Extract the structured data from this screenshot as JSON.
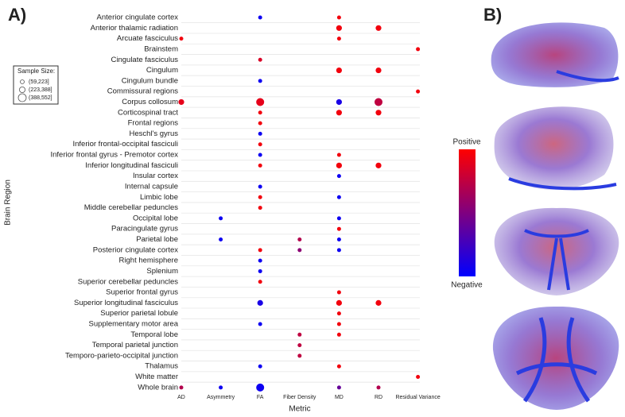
{
  "panel_a_label": "A)",
  "panel_b_label": "B)",
  "chart_data": {
    "type": "dot_matrix",
    "x_label": "Metric",
    "y_label": "Brain Region",
    "categories_x": [
      "AD",
      "Asymmetry",
      "FA",
      "Fiber Density",
      "MD",
      "RD",
      "Residual Variance"
    ],
    "categories_y": [
      "Anterior cingulate cortex",
      "Anterior thalamic radiation",
      "Arcuate fasciculus",
      "Brainstem",
      "Cingulate fasciculus",
      "Cingulum",
      "Cingulum bundle",
      "Commissural regions",
      "Corpus collosum",
      "Corticospinal tract",
      "Frontal regions",
      "Heschl's gyrus",
      "Inferior frontal-occipital fasciculi",
      "Inferior frontal gyrus - Premotor cortex",
      "Inferior longitudinal fasciculi",
      "Insular cortex",
      "Internal capsule",
      "Limbic lobe",
      "Middle cerebellar peduncles",
      "Occipital lobe",
      "Paracingulate gyrus",
      "Parietal lobe",
      "Posterior cingulate cortex",
      "Right hemisphere",
      "Splenium",
      "Superior cerebellar peduncles",
      "Superior frontal gyrus",
      "Superior longitudinal fasciculus",
      "Superior parietal lobule",
      "Supplementary motor area",
      "Temporal lobe",
      "Temporal parietal junction",
      "Temporo-parieto-occipital junction",
      "Thalamus",
      "White matter",
      "Whole brain"
    ],
    "size_legend": {
      "title": "Sample Size:",
      "labels": [
        "(59,223]",
        "(223,388]",
        "(388,552]"
      ]
    },
    "color_legend": {
      "high_label": "Positive",
      "low_label": "Negative",
      "high_color": "#ff0000",
      "low_color": "#0000ff",
      "clim": [
        -1,
        1
      ]
    },
    "grid": true,
    "points": [
      {
        "x": "FA",
        "y": "Anterior cingulate cortex",
        "effect": -0.9,
        "size": "(59,223]"
      },
      {
        "x": "MD",
        "y": "Anterior cingulate cortex",
        "effect": 0.9,
        "size": "(59,223]"
      },
      {
        "x": "MD",
        "y": "Anterior thalamic radiation",
        "effect": 0.9,
        "size": "(223,388]"
      },
      {
        "x": "RD",
        "y": "Anterior thalamic radiation",
        "effect": 0.9,
        "size": "(223,388]"
      },
      {
        "x": "AD",
        "y": "Arcuate fasciculus",
        "effect": 0.9,
        "size": "(59,223]"
      },
      {
        "x": "MD",
        "y": "Arcuate fasciculus",
        "effect": 0.9,
        "size": "(59,223]"
      },
      {
        "x": "Residual Variance",
        "y": "Brainstem",
        "effect": 0.9,
        "size": "(59,223]"
      },
      {
        "x": "FA",
        "y": "Cingulate fasciculus",
        "effect": 0.7,
        "size": "(59,223]"
      },
      {
        "x": "MD",
        "y": "Cingulum",
        "effect": 0.9,
        "size": "(223,388]"
      },
      {
        "x": "RD",
        "y": "Cingulum",
        "effect": 0.9,
        "size": "(223,388]"
      },
      {
        "x": "FA",
        "y": "Cingulum bundle",
        "effect": -0.9,
        "size": "(59,223]"
      },
      {
        "x": "Residual Variance",
        "y": "Commissural regions",
        "effect": 0.9,
        "size": "(59,223]"
      },
      {
        "x": "AD",
        "y": "Corpus collosum",
        "effect": 0.8,
        "size": "(223,388]"
      },
      {
        "x": "FA",
        "y": "Corpus collosum",
        "effect": 0.8,
        "size": "(388,552]"
      },
      {
        "x": "MD",
        "y": "Corpus collosum",
        "effect": -0.8,
        "size": "(223,388]"
      },
      {
        "x": "RD",
        "y": "Corpus collosum",
        "effect": 0.5,
        "size": "(388,552]"
      },
      {
        "x": "FA",
        "y": "Corticospinal tract",
        "effect": 0.9,
        "size": "(59,223]"
      },
      {
        "x": "MD",
        "y": "Corticospinal tract",
        "effect": 0.9,
        "size": "(223,388]"
      },
      {
        "x": "RD",
        "y": "Corticospinal tract",
        "effect": 0.9,
        "size": "(223,388]"
      },
      {
        "x": "FA",
        "y": "Frontal regions",
        "effect": 0.9,
        "size": "(59,223]"
      },
      {
        "x": "FA",
        "y": "Heschl's gyrus",
        "effect": -0.9,
        "size": "(59,223]"
      },
      {
        "x": "FA",
        "y": "Inferior frontal-occipital fasciculi",
        "effect": 0.9,
        "size": "(59,223]"
      },
      {
        "x": "FA",
        "y": "Inferior frontal gyrus - Premotor cortex",
        "effect": -0.9,
        "size": "(59,223]"
      },
      {
        "x": "MD",
        "y": "Inferior frontal gyrus - Premotor cortex",
        "effect": 0.9,
        "size": "(59,223]"
      },
      {
        "x": "FA",
        "y": "Inferior longitudinal fasciculi",
        "effect": 0.9,
        "size": "(59,223]"
      },
      {
        "x": "MD",
        "y": "Inferior longitudinal fasciculi",
        "effect": 0.9,
        "size": "(223,388]"
      },
      {
        "x": "RD",
        "y": "Inferior longitudinal fasciculi",
        "effect": 0.9,
        "size": "(223,388]"
      },
      {
        "x": "MD",
        "y": "Insular cortex",
        "effect": -0.9,
        "size": "(59,223]"
      },
      {
        "x": "FA",
        "y": "Internal capsule",
        "effect": -0.9,
        "size": "(59,223]"
      },
      {
        "x": "FA",
        "y": "Limbic lobe",
        "effect": 0.9,
        "size": "(59,223]"
      },
      {
        "x": "MD",
        "y": "Limbic lobe",
        "effect": -0.9,
        "size": "(59,223]"
      },
      {
        "x": "FA",
        "y": "Middle cerebellar peduncles",
        "effect": 0.9,
        "size": "(59,223]"
      },
      {
        "x": "Asymmetry",
        "y": "Occipital lobe",
        "effect": -0.9,
        "size": "(59,223]"
      },
      {
        "x": "MD",
        "y": "Occipital lobe",
        "effect": -0.9,
        "size": "(59,223]"
      },
      {
        "x": "MD",
        "y": "Paracingulate gyrus",
        "effect": 0.9,
        "size": "(59,223]"
      },
      {
        "x": "Asymmetry",
        "y": "Parietal lobe",
        "effect": -0.9,
        "size": "(59,223]"
      },
      {
        "x": "Fiber Density",
        "y": "Parietal lobe",
        "effect": 0.4,
        "size": "(59,223]"
      },
      {
        "x": "MD",
        "y": "Parietal lobe",
        "effect": -0.9,
        "size": "(59,223]"
      },
      {
        "x": "FA",
        "y": "Posterior cingulate cortex",
        "effect": 0.9,
        "size": "(59,223]"
      },
      {
        "x": "Fiber Density",
        "y": "Posterior cingulate cortex",
        "effect": 0.1,
        "size": "(59,223]"
      },
      {
        "x": "MD",
        "y": "Posterior cingulate cortex",
        "effect": -0.9,
        "size": "(59,223]"
      },
      {
        "x": "FA",
        "y": "Right hemisphere",
        "effect": -0.9,
        "size": "(59,223]"
      },
      {
        "x": "FA",
        "y": "Splenium",
        "effect": -0.9,
        "size": "(59,223]"
      },
      {
        "x": "FA",
        "y": "Superior cerebellar peduncles",
        "effect": 0.9,
        "size": "(59,223]"
      },
      {
        "x": "MD",
        "y": "Superior frontal gyrus",
        "effect": 0.9,
        "size": "(59,223]"
      },
      {
        "x": "FA",
        "y": "Superior longitudinal fasciculus",
        "effect": -0.8,
        "size": "(223,388]"
      },
      {
        "x": "MD",
        "y": "Superior longitudinal fasciculus",
        "effect": 0.9,
        "size": "(223,388]"
      },
      {
        "x": "RD",
        "y": "Superior longitudinal fasciculus",
        "effect": 0.9,
        "size": "(223,388]"
      },
      {
        "x": "MD",
        "y": "Superior parietal lobule",
        "effect": 0.9,
        "size": "(59,223]"
      },
      {
        "x": "FA",
        "y": "Supplementary motor area",
        "effect": -0.9,
        "size": "(59,223]"
      },
      {
        "x": "MD",
        "y": "Supplementary motor area",
        "effect": 0.9,
        "size": "(59,223]"
      },
      {
        "x": "Fiber Density",
        "y": "Temporal lobe",
        "effect": 0.5,
        "size": "(59,223]"
      },
      {
        "x": "MD",
        "y": "Temporal lobe",
        "effect": 0.9,
        "size": "(59,223]"
      },
      {
        "x": "Fiber Density",
        "y": "Temporal parietal junction",
        "effect": 0.5,
        "size": "(59,223]"
      },
      {
        "x": "Fiber Density",
        "y": "Temporo-parieto-occipital junction",
        "effect": 0.5,
        "size": "(59,223]"
      },
      {
        "x": "FA",
        "y": "Thalamus",
        "effect": -0.9,
        "size": "(59,223]"
      },
      {
        "x": "MD",
        "y": "Thalamus",
        "effect": 0.9,
        "size": "(59,223]"
      },
      {
        "x": "Residual Variance",
        "y": "White matter",
        "effect": 0.9,
        "size": "(59,223]"
      },
      {
        "x": "AD",
        "y": "Whole brain",
        "effect": 0.4,
        "size": "(59,223]"
      },
      {
        "x": "Asymmetry",
        "y": "Whole brain",
        "effect": -0.9,
        "size": "(59,223]"
      },
      {
        "x": "FA",
        "y": "Whole brain",
        "effect": -0.9,
        "size": "(388,552]"
      },
      {
        "x": "MD",
        "y": "Whole brain",
        "effect": -0.2,
        "size": "(59,223]"
      },
      {
        "x": "RD",
        "y": "Whole brain",
        "effect": 0.4,
        "size": "(59,223]"
      }
    ]
  }
}
